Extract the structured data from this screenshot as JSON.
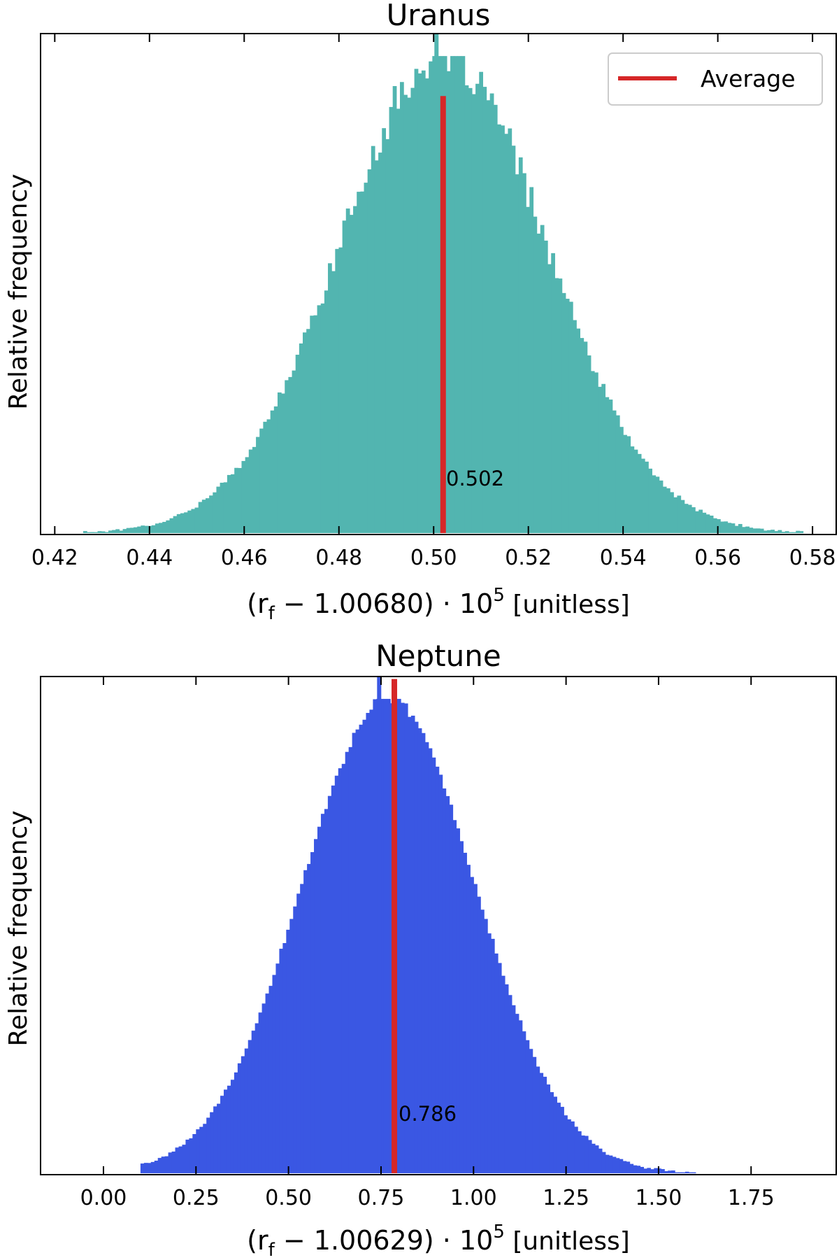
{
  "chart_data": [
    {
      "type": "histogram",
      "title": "Uranus",
      "ylabel": "Relative frequency",
      "xlabel_parts": [
        "(r",
        "f",
        " − 1.00680) · 10",
        "5",
        " [unitless]"
      ],
      "xlim": [
        0.417,
        0.585
      ],
      "ticks": [
        0.42,
        0.44,
        0.46,
        0.48,
        0.5,
        0.52,
        0.54,
        0.56,
        0.58
      ],
      "tick_labels": [
        "0.42",
        "0.44",
        "0.46",
        "0.48",
        "0.50",
        "0.52",
        "0.54",
        "0.56",
        "0.58"
      ],
      "distribution": {
        "mean": 0.502,
        "sd": 0.0218,
        "range": [
          0.426,
          0.578
        ],
        "bins": 200,
        "noise": 0.045,
        "seed": 17
      },
      "bar_color": "#52b5b0",
      "average": {
        "value": 0.502,
        "label": "0.502",
        "color": "#d62728",
        "height_fraction": 0.875
      },
      "spike": {
        "value": 0.5006,
        "color": "#52b5b0"
      },
      "legend": {
        "entries": [
          "Average"
        ],
        "placement": "top-right"
      },
      "grid": false
    },
    {
      "type": "histogram",
      "title": "Neptune",
      "ylabel": "Relative frequency",
      "xlabel_parts": [
        "(r",
        "f",
        " − 1.00629) · 10",
        "5",
        " [unitless]"
      ],
      "xlim": [
        -0.17,
        1.98
      ],
      "ticks": [
        0.0,
        0.25,
        0.5,
        0.75,
        1.0,
        1.25,
        1.5,
        1.75
      ],
      "tick_labels": [
        "0.00",
        "0.25",
        "0.50",
        "0.75",
        "1.00",
        "1.25",
        "1.50",
        "1.75"
      ],
      "distribution": {
        "mean": 0.77,
        "sd": 0.235,
        "range": [
          0.1,
          1.6
        ],
        "bins": 160,
        "noise": 0.012,
        "seed": 29
      },
      "bar_color": "#3a57e3",
      "average": {
        "value": 0.786,
        "label": "0.786",
        "color": "#d62728",
        "height_fraction": 0.995
      },
      "spike": {
        "value": 0.745,
        "color": "#3a57e3"
      },
      "legend": null,
      "grid": false
    }
  ]
}
